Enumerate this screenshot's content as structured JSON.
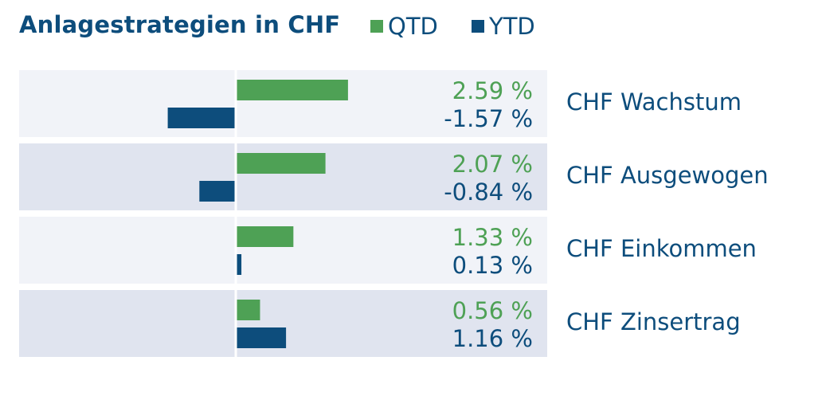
{
  "chart_data": {
    "type": "bar",
    "orientation": "horizontal",
    "title": "Anlagestrategien in CHF",
    "categories": [
      "CHF Wachstum",
      "CHF Ausgewogen",
      "CHF Einkommen",
      "CHF Zinsertrag"
    ],
    "series": [
      {
        "name": "QTD",
        "values": [
          2.59,
          2.07,
          1.33,
          0.56
        ],
        "labels": [
          "2.59 %",
          "2.07 %",
          "1.33 %",
          "0.56 %"
        ],
        "color": "#4ea155"
      },
      {
        "name": "YTD",
        "values": [
          -1.57,
          -0.84,
          0.13,
          1.16
        ],
        "labels": [
          "-1.57 %",
          "-0.84 %",
          "0.13 %",
          "1.16 %"
        ],
        "color": "#0d4d7c"
      }
    ],
    "xlim": [
      -5,
      6.5
    ],
    "grid": false,
    "legend_position": "top",
    "row_colors": [
      "#f1f3f8",
      "#e0e4ef"
    ],
    "label_color": "#0d4d7c"
  }
}
